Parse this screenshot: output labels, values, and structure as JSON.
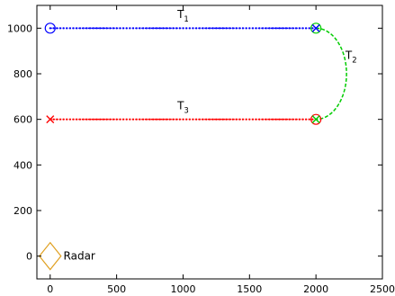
{
  "chart_data": {
    "type": "line",
    "title": "",
    "xlabel": "",
    "ylabel": "",
    "xlim": [
      -100,
      2500
    ],
    "ylim": [
      -100,
      1100
    ],
    "xticks": [
      0,
      500,
      1000,
      1500,
      2000,
      2500
    ],
    "yticks": [
      0,
      200,
      400,
      600,
      800,
      1000
    ],
    "grid": false,
    "series": [
      {
        "label": "T",
        "label_sub": "1",
        "color": "#0000ff",
        "style": "dotted-markers",
        "points": [
          [
            0,
            1000
          ],
          [
            2000,
            1000
          ]
        ],
        "label_at": [
          1000,
          1045
        ]
      },
      {
        "label": "T",
        "label_sub": "2",
        "color": "#00cc00",
        "style": "dashed",
        "arc": {
          "center": [
            2000,
            800
          ],
          "radius": 200,
          "start_deg": 90,
          "end_deg": -90,
          "x_stretch": 1.15
        },
        "label_at": [
          2265,
          865
        ]
      },
      {
        "label": "T",
        "label_sub": "3",
        "color": "#ff0000",
        "style": "dotted-markers",
        "points": [
          [
            0,
            600
          ],
          [
            2000,
            600
          ]
        ],
        "label_at": [
          1000,
          645
        ]
      }
    ],
    "markers": [
      {
        "shape": "circle",
        "x": 0,
        "y": 1000,
        "color": "#0000ff"
      },
      {
        "shape": "circle",
        "x": 2000,
        "y": 1000,
        "color": "#00cc00"
      },
      {
        "shape": "cross",
        "x": 2000,
        "y": 1000,
        "color": "#0000ff"
      },
      {
        "shape": "circle",
        "x": 2000,
        "y": 600,
        "color": "#ff0000"
      },
      {
        "shape": "cross",
        "x": 2000,
        "y": 600,
        "color": "#00cc00"
      },
      {
        "shape": "cross",
        "x": 0,
        "y": 600,
        "color": "#ff0000"
      },
      {
        "shape": "diamond",
        "x": 0,
        "y": 0,
        "color": "#e0a020"
      }
    ],
    "annotations": [
      {
        "text": "Radar",
        "x": 100,
        "y": 0
      }
    ]
  }
}
